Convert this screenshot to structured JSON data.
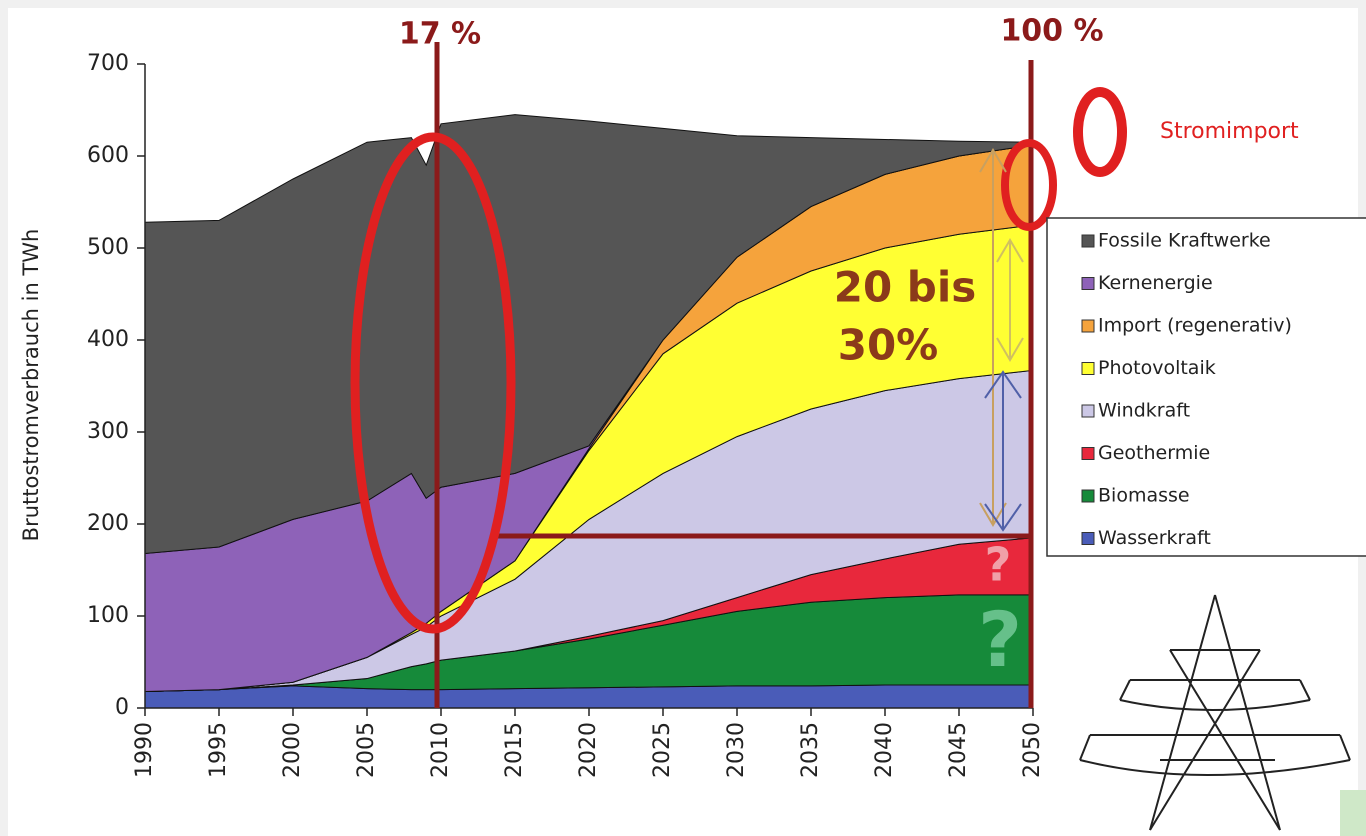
{
  "chart_data": {
    "type": "stacked_area",
    "y_label": "Bruttostromverbrauch in TWh",
    "x": [
      1990,
      1995,
      2000,
      2005,
      2008,
      2009,
      2010,
      2015,
      2020,
      2025,
      2030,
      2035,
      2040,
      2045,
      2050
    ],
    "series": [
      {
        "name": "Wasserkraft",
        "color": "#4a5cb8",
        "values": [
          18,
          20,
          24,
          21,
          20,
          20,
          20,
          21,
          22,
          23,
          24,
          24,
          25,
          25,
          25
        ]
      },
      {
        "name": "Biomasse",
        "color": "#168a3a",
        "values": [
          0,
          0,
          1,
          11,
          25,
          28,
          32,
          41,
          53,
          67,
          81,
          91,
          95,
          98,
          98
        ]
      },
      {
        "name": "Geothermie",
        "color": "#e8283c",
        "values": [
          0,
          0,
          0,
          0,
          0,
          0,
          0,
          0,
          3,
          5,
          15,
          30,
          42,
          55,
          62
        ]
      },
      {
        "name": "Windkraft",
        "color": "#ccc8e6",
        "values": [
          0,
          0,
          3,
          23,
          35,
          40,
          48,
          78,
          127,
          160,
          175,
          180,
          183,
          180,
          182
        ]
      },
      {
        "name": "Photovoltaik",
        "color": "#ffff33",
        "values": [
          0,
          0,
          0,
          0,
          2,
          4,
          5,
          20,
          75,
          130,
          145,
          150,
          155,
          157,
          158
        ]
      },
      {
        "name": "Import (regenerativ)",
        "color": "#f5a33c",
        "values": [
          0,
          0,
          0,
          0,
          0,
          0,
          0,
          0,
          2,
          15,
          50,
          70,
          80,
          85,
          87
        ]
      },
      {
        "name": "Kernenergie",
        "color": "#8e62b8",
        "values": [
          150,
          155,
          177,
          170,
          173,
          136,
          135,
          95,
          3,
          0,
          0,
          0,
          0,
          0,
          0
        ]
      },
      {
        "name": "Fossile Kraftwerke",
        "color": "#555555",
        "values": [
          360,
          355,
          370,
          390,
          365,
          362,
          395,
          390,
          353,
          230,
          132,
          75,
          38,
          16,
          3
        ]
      }
    ],
    "xlim": [
      1990,
      2050
    ],
    "xticks": [
      1990,
      1995,
      2000,
      2005,
      2010,
      2015,
      2020,
      2025,
      2030,
      2035,
      2040,
      2045,
      2050
    ],
    "ylim": [
      0,
      700
    ],
    "yticks": [
      0,
      100,
      200,
      300,
      400,
      500,
      600,
      700
    ],
    "annotations": [
      "17 %",
      "100 %",
      "Stromimport",
      "20 bis",
      "30%",
      "?",
      "?"
    ]
  }
}
